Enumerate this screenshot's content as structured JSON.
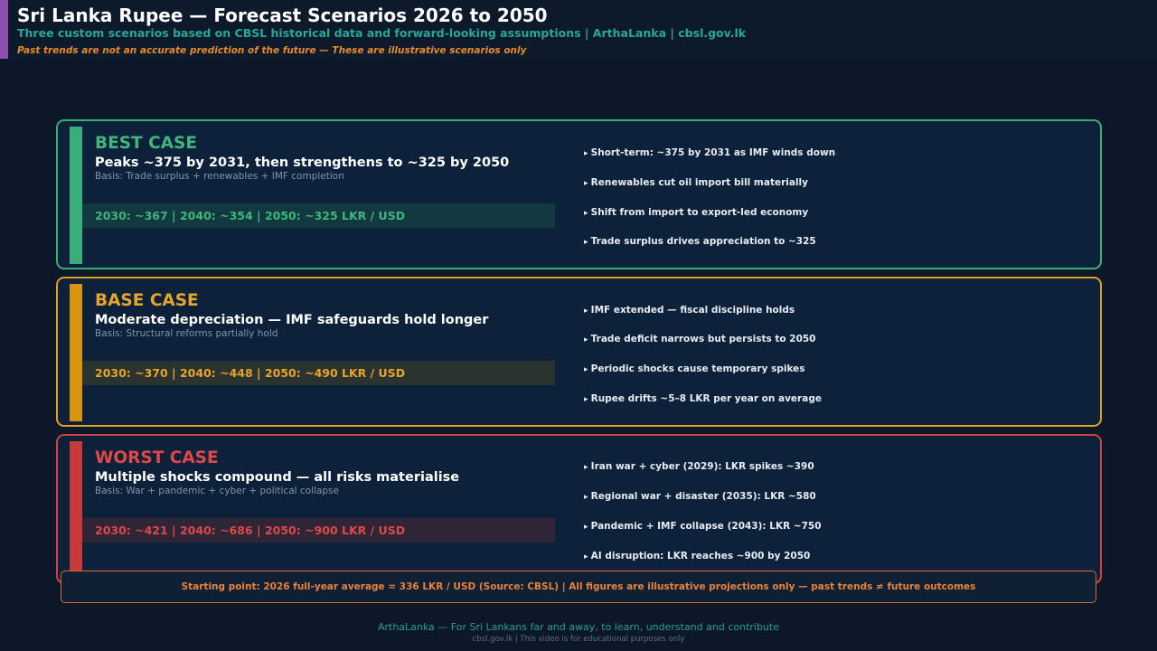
{
  "header": {
    "title": "Sri Lanka Rupee  —  Forecast Scenarios 2026 to 2050",
    "subtitle": "Three custom scenarios based on CBSL historical data and forward-looking assumptions  |  ArthaLanka  |  cbsl.gov.lk",
    "disclaimer": "Past trends are not an accurate prediction of the future  —  These are illustrative scenarios only"
  },
  "scenarios": [
    {
      "label": "BEST CASE",
      "headline": "Peaks ~375 by 2031, then strengthens to ~325 by 2050",
      "basis": "Basis:  Trade surplus + renewables + IMF completion",
      "projections": "2030:  ~367   |   2040:  ~354   |   2050:  ~325 LKR / USD",
      "bullets": [
        "Short-term: ~375 by 2031 as IMF winds down",
        "Renewables cut oil import bill materially",
        "Shift from import to export-led economy",
        "Trade surplus drives appreciation to ~325"
      ]
    },
    {
      "label": "BASE CASE",
      "headline": "Moderate depreciation — IMF safeguards hold longer",
      "basis": "Basis:  Structural reforms partially hold",
      "projections": "2030:  ~370   |   2040:  ~448   |   2050:  ~490 LKR / USD",
      "bullets": [
        "IMF extended — fiscal discipline holds",
        "Trade deficit narrows but persists to 2050",
        "Periodic shocks cause temporary spikes",
        "Rupee drifts ~5–8 LKR per year on average"
      ]
    },
    {
      "label": "WORST CASE",
      "headline": "Multiple shocks compound — all risks materialise",
      "basis": "Basis:  War + pandemic + cyber + political collapse",
      "projections": "2030:  ~421   |   2040:  ~686   |   2050:  ~900 LKR / USD",
      "bullets": [
        "Iran war + cyber (2029): LKR spikes ~390",
        "Regional war + disaster (2035): LKR ~580",
        "Pandemic + IMF collapse (2043): LKR ~750",
        "AI disruption: LKR reaches ~900 by 2050"
      ]
    }
  ],
  "starting_point": "Starting point:  2026 full-year average  =  336 LKR / USD  (Source: CBSL)   |   All figures are illustrative projections only  —  past trends ≠ future outcomes",
  "footer": {
    "tagline": "ArthaLanka  —  For Sri Lankans far and away, to learn, understand and contribute",
    "note": "cbsl.gov.lk  |  This video is for educational purposes only"
  }
}
